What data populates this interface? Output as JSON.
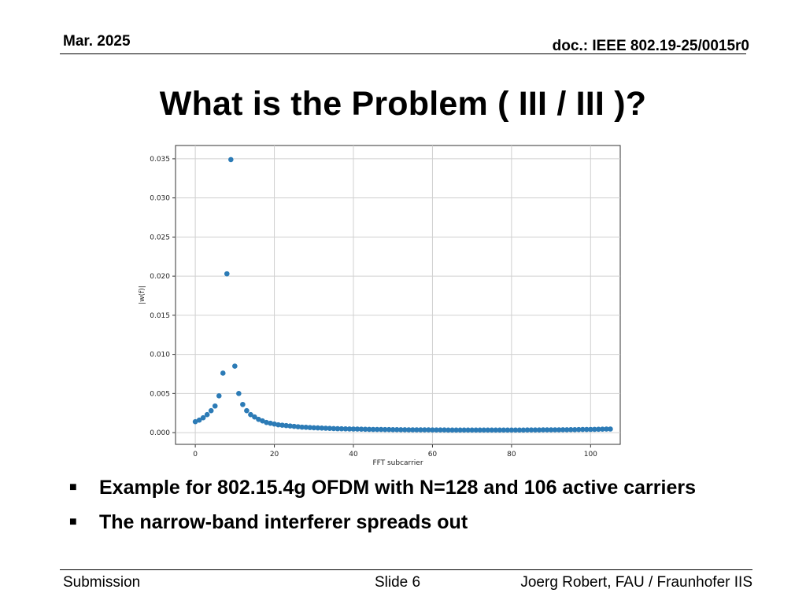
{
  "header": {
    "date": "Mar. 2025",
    "doc_id": "doc.: IEEE 802.19-25/0015r0"
  },
  "title": "What is the Problem ( III / III )?",
  "bullets": [
    {
      "text": "Example for 802.15.4g OFDM with N=128 and 106 active carriers"
    },
    {
      "text": "The narrow-band interferer spreads out"
    }
  ],
  "icons": {
    "bullet": "square-bullet-icon"
  },
  "footer": {
    "left": "Submission",
    "center": "Slide 6",
    "right": "Joerg Robert, FAU / Fraunhofer IIS"
  },
  "chart_data": {
    "type": "scatter",
    "xlabel": "FFT subcarrier",
    "ylabel": "|w(f)|",
    "xlim": [
      -5,
      107.5
    ],
    "ylim": [
      -0.0015,
      0.0367
    ],
    "xticks": [
      0,
      20,
      40,
      60,
      80,
      100
    ],
    "yticks": [
      0.0,
      0.005,
      0.01,
      0.015,
      0.02,
      0.025,
      0.03,
      0.035
    ],
    "ytick_labels": [
      "0.000",
      "0.005",
      "0.010",
      "0.015",
      "0.020",
      "0.025",
      "0.030",
      "0.035"
    ],
    "grid": true,
    "marker_color": "#2c7bb6",
    "x": [
      0,
      1,
      2,
      3,
      4,
      5,
      6,
      7,
      8,
      9,
      10,
      11,
      12,
      13,
      14,
      15,
      16,
      17,
      18,
      19,
      20,
      21,
      22,
      23,
      24,
      25,
      26,
      27,
      28,
      29,
      30,
      31,
      32,
      33,
      34,
      35,
      36,
      37,
      38,
      39,
      40,
      41,
      42,
      43,
      44,
      45,
      46,
      47,
      48,
      49,
      50,
      51,
      52,
      53,
      54,
      55,
      56,
      57,
      58,
      59,
      60,
      61,
      62,
      63,
      64,
      65,
      66,
      67,
      68,
      69,
      70,
      71,
      72,
      73,
      74,
      75,
      76,
      77,
      78,
      79,
      80,
      81,
      82,
      83,
      84,
      85,
      86,
      87,
      88,
      89,
      90,
      91,
      92,
      93,
      94,
      95,
      96,
      97,
      98,
      99,
      100,
      101,
      102,
      103,
      104,
      105
    ],
    "y": [
      0.0014,
      0.0016,
      0.0019,
      0.0023,
      0.0028,
      0.0034,
      0.0047,
      0.0076,
      0.0203,
      0.0349,
      0.0085,
      0.005,
      0.0036,
      0.0028,
      0.0023,
      0.002,
      0.0017,
      0.0015,
      0.0013,
      0.0012,
      0.0011,
      0.001,
      0.00095,
      0.0009,
      0.00085,
      0.0008,
      0.00075,
      0.0007,
      0.00068,
      0.00065,
      0.00062,
      0.0006,
      0.00058,
      0.00056,
      0.00054,
      0.00052,
      0.0005,
      0.00049,
      0.00048,
      0.00047,
      0.00046,
      0.00045,
      0.00044,
      0.00043,
      0.00042,
      0.00041,
      0.0004,
      0.0004,
      0.00039,
      0.00039,
      0.00038,
      0.00038,
      0.00037,
      0.00037,
      0.00036,
      0.00036,
      0.00036,
      0.00035,
      0.00035,
      0.00035,
      0.00034,
      0.00034,
      0.00034,
      0.00034,
      0.00033,
      0.00033,
      0.00033,
      0.00033,
      0.00033,
      0.00033,
      0.00033,
      0.00033,
      0.00033,
      0.00033,
      0.00033,
      0.00033,
      0.00033,
      0.00033,
      0.00033,
      0.00033,
      0.00033,
      0.00033,
      0.00033,
      0.00033,
      0.00034,
      0.00034,
      0.00034,
      0.00034,
      0.00035,
      0.00035,
      0.00035,
      0.00036,
      0.00036,
      0.00037,
      0.00037,
      0.00038,
      0.00038,
      0.00039,
      0.0004,
      0.0004,
      0.00041,
      0.00042,
      0.00043,
      0.00044,
      0.00045,
      0.00046
    ]
  }
}
